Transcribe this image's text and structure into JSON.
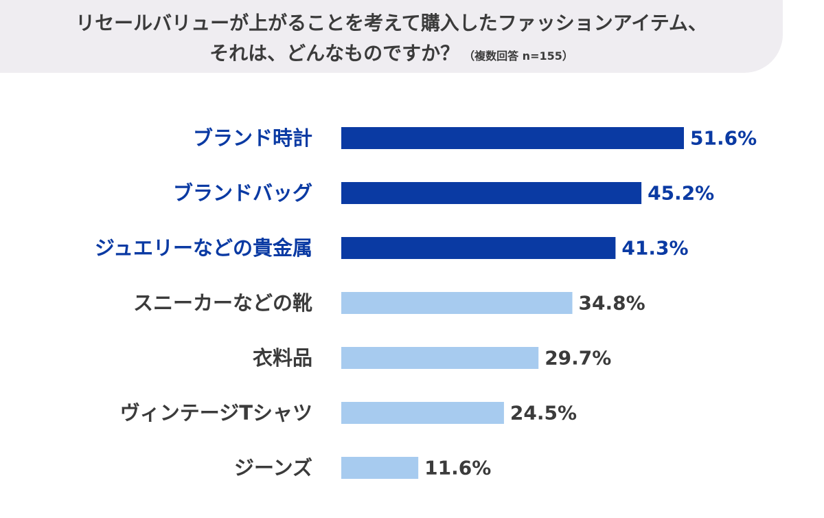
{
  "header": {
    "title_line1": "リセールバリューが上がることを考えて購入したファッションアイテム、",
    "title_line2": "それは、どんなものですか？",
    "note": "（複数回答 n=155）"
  },
  "colors": {
    "highlight_bar": "#0a3aa3",
    "highlight_text": "#0a3aa3",
    "normal_bar": "#a7cbef",
    "normal_text": "#3b3b3b"
  },
  "chart_data": {
    "type": "bar",
    "orientation": "horizontal",
    "title": "リセールバリューが上がることを考えて購入したファッションアイテム、それは、どんなものですか？（複数回答 n=155）",
    "categories": [
      "ブランド時計",
      "ブランドバッグ",
      "ジュエリーなどの貴金属",
      "スニーカーなどの靴",
      "衣料品",
      "ヴィンテージTシャツ",
      "ジーンズ"
    ],
    "values": [
      51.6,
      45.2,
      41.3,
      34.8,
      29.7,
      24.5,
      11.6
    ],
    "value_labels": [
      "51.6%",
      "45.2%",
      "41.3%",
      "34.8%",
      "29.7%",
      "24.5%",
      "11.6%"
    ],
    "highlighted": [
      true,
      true,
      true,
      false,
      false,
      false,
      false
    ],
    "unit": "%",
    "xlim": [
      0,
      51.6
    ]
  }
}
